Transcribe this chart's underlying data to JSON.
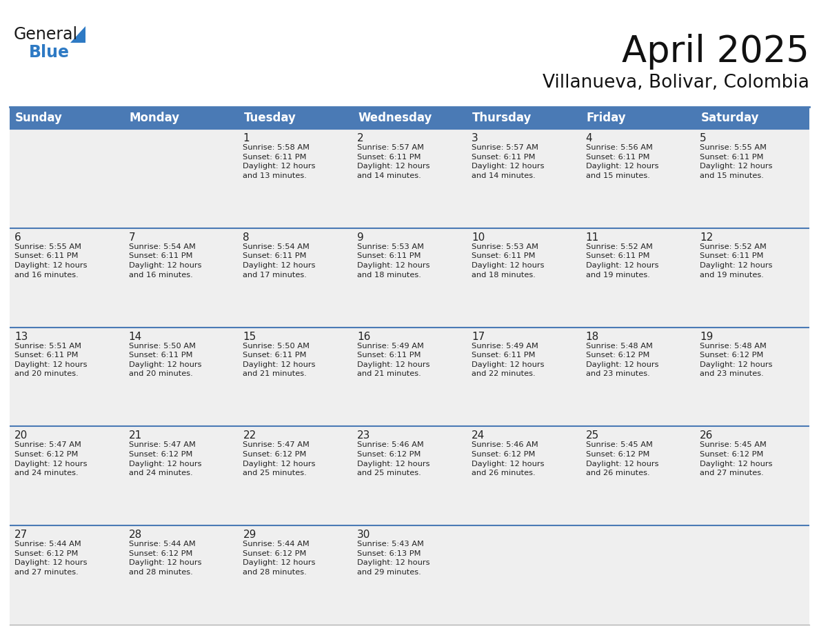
{
  "title": "April 2025",
  "subtitle": "Villanueva, Bolivar, Colombia",
  "header_color": "#4a7ab5",
  "header_text_color": "#ffffff",
  "cell_bg_color": "#efefef",
  "cell_bg_white": "#ffffff",
  "row_divider_color": "#4a7ab5",
  "cell_border_color": "#cccccc",
  "day_headers": [
    "Sunday",
    "Monday",
    "Tuesday",
    "Wednesday",
    "Thursday",
    "Friday",
    "Saturday"
  ],
  "weeks": [
    [
      {
        "day": "",
        "text": ""
      },
      {
        "day": "",
        "text": ""
      },
      {
        "day": "1",
        "text": "Sunrise: 5:58 AM\nSunset: 6:11 PM\nDaylight: 12 hours\nand 13 minutes."
      },
      {
        "day": "2",
        "text": "Sunrise: 5:57 AM\nSunset: 6:11 PM\nDaylight: 12 hours\nand 14 minutes."
      },
      {
        "day": "3",
        "text": "Sunrise: 5:57 AM\nSunset: 6:11 PM\nDaylight: 12 hours\nand 14 minutes."
      },
      {
        "day": "4",
        "text": "Sunrise: 5:56 AM\nSunset: 6:11 PM\nDaylight: 12 hours\nand 15 minutes."
      },
      {
        "day": "5",
        "text": "Sunrise: 5:55 AM\nSunset: 6:11 PM\nDaylight: 12 hours\nand 15 minutes."
      }
    ],
    [
      {
        "day": "6",
        "text": "Sunrise: 5:55 AM\nSunset: 6:11 PM\nDaylight: 12 hours\nand 16 minutes."
      },
      {
        "day": "7",
        "text": "Sunrise: 5:54 AM\nSunset: 6:11 PM\nDaylight: 12 hours\nand 16 minutes."
      },
      {
        "day": "8",
        "text": "Sunrise: 5:54 AM\nSunset: 6:11 PM\nDaylight: 12 hours\nand 17 minutes."
      },
      {
        "day": "9",
        "text": "Sunrise: 5:53 AM\nSunset: 6:11 PM\nDaylight: 12 hours\nand 18 minutes."
      },
      {
        "day": "10",
        "text": "Sunrise: 5:53 AM\nSunset: 6:11 PM\nDaylight: 12 hours\nand 18 minutes."
      },
      {
        "day": "11",
        "text": "Sunrise: 5:52 AM\nSunset: 6:11 PM\nDaylight: 12 hours\nand 19 minutes."
      },
      {
        "day": "12",
        "text": "Sunrise: 5:52 AM\nSunset: 6:11 PM\nDaylight: 12 hours\nand 19 minutes."
      }
    ],
    [
      {
        "day": "13",
        "text": "Sunrise: 5:51 AM\nSunset: 6:11 PM\nDaylight: 12 hours\nand 20 minutes."
      },
      {
        "day": "14",
        "text": "Sunrise: 5:50 AM\nSunset: 6:11 PM\nDaylight: 12 hours\nand 20 minutes."
      },
      {
        "day": "15",
        "text": "Sunrise: 5:50 AM\nSunset: 6:11 PM\nDaylight: 12 hours\nand 21 minutes."
      },
      {
        "day": "16",
        "text": "Sunrise: 5:49 AM\nSunset: 6:11 PM\nDaylight: 12 hours\nand 21 minutes."
      },
      {
        "day": "17",
        "text": "Sunrise: 5:49 AM\nSunset: 6:11 PM\nDaylight: 12 hours\nand 22 minutes."
      },
      {
        "day": "18",
        "text": "Sunrise: 5:48 AM\nSunset: 6:12 PM\nDaylight: 12 hours\nand 23 minutes."
      },
      {
        "day": "19",
        "text": "Sunrise: 5:48 AM\nSunset: 6:12 PM\nDaylight: 12 hours\nand 23 minutes."
      }
    ],
    [
      {
        "day": "20",
        "text": "Sunrise: 5:47 AM\nSunset: 6:12 PM\nDaylight: 12 hours\nand 24 minutes."
      },
      {
        "day": "21",
        "text": "Sunrise: 5:47 AM\nSunset: 6:12 PM\nDaylight: 12 hours\nand 24 minutes."
      },
      {
        "day": "22",
        "text": "Sunrise: 5:47 AM\nSunset: 6:12 PM\nDaylight: 12 hours\nand 25 minutes."
      },
      {
        "day": "23",
        "text": "Sunrise: 5:46 AM\nSunset: 6:12 PM\nDaylight: 12 hours\nand 25 minutes."
      },
      {
        "day": "24",
        "text": "Sunrise: 5:46 AM\nSunset: 6:12 PM\nDaylight: 12 hours\nand 26 minutes."
      },
      {
        "day": "25",
        "text": "Sunrise: 5:45 AM\nSunset: 6:12 PM\nDaylight: 12 hours\nand 26 minutes."
      },
      {
        "day": "26",
        "text": "Sunrise: 5:45 AM\nSunset: 6:12 PM\nDaylight: 12 hours\nand 27 minutes."
      }
    ],
    [
      {
        "day": "27",
        "text": "Sunrise: 5:44 AM\nSunset: 6:12 PM\nDaylight: 12 hours\nand 27 minutes."
      },
      {
        "day": "28",
        "text": "Sunrise: 5:44 AM\nSunset: 6:12 PM\nDaylight: 12 hours\nand 28 minutes."
      },
      {
        "day": "29",
        "text": "Sunrise: 5:44 AM\nSunset: 6:12 PM\nDaylight: 12 hours\nand 28 minutes."
      },
      {
        "day": "30",
        "text": "Sunrise: 5:43 AM\nSunset: 6:13 PM\nDaylight: 12 hours\nand 29 minutes."
      },
      {
        "day": "",
        "text": ""
      },
      {
        "day": "",
        "text": ""
      },
      {
        "day": "",
        "text": ""
      }
    ]
  ],
  "logo_general_color": "#1a1a1a",
  "logo_blue_color": "#2e7ac4",
  "title_fontsize": 38,
  "subtitle_fontsize": 19,
  "header_fontsize": 12,
  "day_num_fontsize": 11,
  "cell_text_fontsize": 8.2
}
